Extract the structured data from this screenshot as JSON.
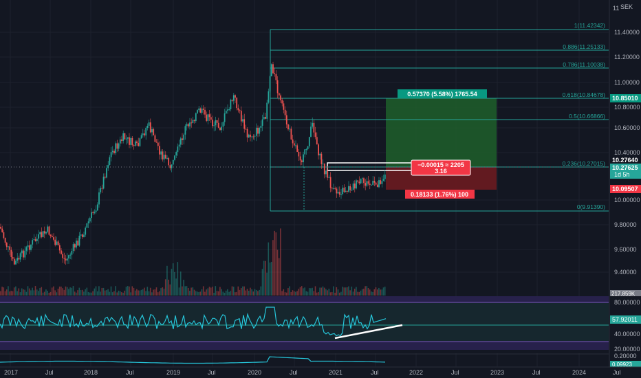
{
  "currency": "SEK",
  "price_axis": {
    "ticks": [
      "11.40000",
      "11.20000",
      "11.00000",
      "10.80000",
      "10.60000",
      "10.40000",
      "10.00000",
      "9.80000",
      "9.60000",
      "9.40000"
    ],
    "top_label": "11"
  },
  "time_axis": [
    "2017",
    "Jul",
    "2018",
    "Jul",
    "2019",
    "Jul",
    "2020",
    "Jul",
    "2021",
    "Jul",
    "2022",
    "Jul",
    "2023",
    "Jul",
    "2024",
    "Jul"
  ],
  "fib_levels": [
    {
      "label": "1(11.42342)"
    },
    {
      "label": "0.886(11.25133)"
    },
    {
      "label": "0.786(11.10038)"
    },
    {
      "label": "0.618(10.84678)"
    },
    {
      "label": "0.5(10.66866)"
    },
    {
      "label": "0.236(10.27015)"
    },
    {
      "label": "0(9.91390)"
    }
  ],
  "position": {
    "target_label": "0.57370 (5.58%) 1765.54",
    "stop_label": "0.18133 (1.76%) 100",
    "entry_line1": "−0.00015 ≈ 2205",
    "entry_line2": "3.16"
  },
  "price_tags": {
    "target": "10.85010",
    "current": "10.27640",
    "last": "10.27625",
    "countdown": "1d 5h",
    "stop": "10.09507",
    "volume": "217.859K"
  },
  "rsi": {
    "ticks": [
      "80.00000",
      "40.00000",
      "20.00000"
    ],
    "value": "57.92011"
  },
  "indicator2": {
    "ticks": [
      "0.20000"
    ],
    "value": "0.09923"
  },
  "colors": {
    "background": "#131722",
    "up": "#26a69a",
    "down": "#ef5350",
    "fib": "#26a69a",
    "target_zone": "#1e5b2a",
    "stop_zone": "#6b1b20"
  },
  "chart_data": {
    "type": "candlestick",
    "symbol_currency": "SEK",
    "fib_retracement": [
      {
        "ratio": 1,
        "price": 11.42342
      },
      {
        "ratio": 0.886,
        "price": 11.25133
      },
      {
        "ratio": 0.786,
        "price": 11.10038
      },
      {
        "ratio": 0.618,
        "price": 10.84678
      },
      {
        "ratio": 0.5,
        "price": 10.66866
      },
      {
        "ratio": 0.236,
        "price": 10.27015
      },
      {
        "ratio": 0,
        "price": 9.9139
      }
    ],
    "long_position": {
      "entry": 10.2764,
      "target": 10.8501,
      "stop": 10.09507
    },
    "last_price": 10.27625,
    "rsi_last": 57.92011
  }
}
